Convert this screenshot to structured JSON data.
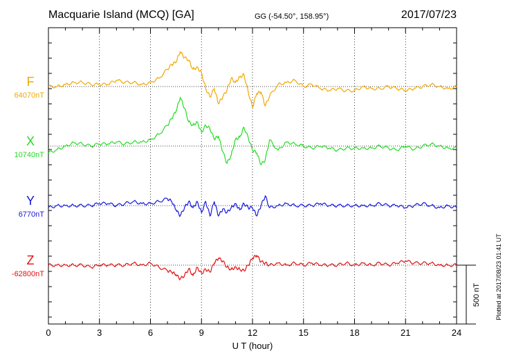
{
  "header": {
    "station": "Macquarie Island (MCQ)  [GA]",
    "coordinates": "GG (-54.50°, 158.95°)",
    "date": "2017/07/23"
  },
  "footer": {
    "plotted": "Plotted at 2017/08/23 01:41  UT"
  },
  "scale_bar": {
    "label": "500 nT",
    "value_nT": 500
  },
  "chart_data": {
    "type": "line",
    "xlabel": "U T (hour)",
    "xlim": [
      0,
      24
    ],
    "x_ticks": [
      0,
      3,
      6,
      9,
      12,
      15,
      18,
      21,
      24
    ],
    "x_tick_labels": [
      "0",
      "3",
      "6",
      "9",
      "12",
      "15",
      "18",
      "21",
      "24"
    ],
    "grid": {
      "vertical_dotted": true,
      "baseline_dotted": true
    },
    "x": [
      0,
      0.5,
      1,
      1.5,
      2,
      2.5,
      3,
      3.5,
      4,
      4.5,
      5,
      5.5,
      6,
      6.5,
      7,
      7.25,
      7.5,
      7.75,
      8,
      8.25,
      8.5,
      8.75,
      9,
      9.25,
      9.5,
      9.75,
      10,
      10.25,
      10.5,
      10.75,
      11,
      11.25,
      11.5,
      11.75,
      12,
      12.25,
      12.5,
      12.75,
      13,
      13.5,
      14,
      14.5,
      15,
      15.5,
      16,
      16.5,
      17,
      17.5,
      18,
      18.5,
      19,
      19.5,
      20,
      20.5,
      21,
      21.5,
      22,
      22.5,
      23,
      23.5,
      24
    ],
    "series": [
      {
        "name": "F",
        "color": "#f0a800",
        "baseline_label": "64070nT",
        "baseline_nT": 64070,
        "values": [
          0,
          0,
          3,
          6,
          6,
          3,
          3,
          3,
          9,
          6,
          6,
          3,
          6,
          12,
          25,
          32,
          35,
          50,
          42,
          38,
          25,
          28,
          20,
          -3,
          -15,
          -3,
          -25,
          -15,
          -5,
          12,
          6,
          14,
          17,
          -8,
          -30,
          -10,
          -8,
          -28,
          -14,
          3,
          6,
          9,
          0,
          3,
          -3,
          -6,
          -3,
          -6,
          -6,
          0,
          -3,
          -3,
          0,
          -3,
          -6,
          -3,
          0,
          3,
          0,
          -3,
          0
        ]
      },
      {
        "name": "X",
        "color": "#22dd22",
        "baseline_label": "10740nT",
        "baseline_nT": 10740,
        "values": [
          -10,
          -5,
          0,
          5,
          3,
          0,
          3,
          3,
          6,
          3,
          6,
          6,
          9,
          17,
          30,
          40,
          50,
          70,
          55,
          35,
          30,
          35,
          20,
          30,
          25,
          10,
          14,
          -8,
          -25,
          -13,
          10,
          13,
          27,
          12,
          -6,
          -10,
          -27,
          -20,
          9,
          -6,
          6,
          3,
          0,
          -3,
          0,
          -3,
          -6,
          -3,
          -3,
          -3,
          -3,
          0,
          -3,
          -6,
          0,
          -5,
          0,
          3,
          0,
          -3,
          -3
        ]
      },
      {
        "name": "Y",
        "color": "#1515dd",
        "baseline_label": "6770nT",
        "baseline_nT": 6770,
        "values": [
          -3,
          0,
          0,
          0,
          0,
          0,
          3,
          3,
          0,
          3,
          6,
          3,
          3,
          6,
          10,
          6,
          -6,
          -15,
          -3,
          6,
          -3,
          6,
          -10,
          6,
          -15,
          6,
          -15,
          -5,
          -10,
          -3,
          3,
          -6,
          3,
          -3,
          -3,
          -15,
          0,
          14,
          -3,
          0,
          3,
          0,
          0,
          0,
          3,
          0,
          0,
          0,
          0,
          0,
          0,
          3,
          0,
          0,
          -3,
          0,
          3,
          0,
          -3,
          0,
          -3
        ]
      },
      {
        "name": "Z",
        "color": "#e01010",
        "baseline_label": "-62800nT",
        "baseline_nT": -62800,
        "values": [
          0,
          0,
          0,
          0,
          0,
          -3,
          0,
          0,
          0,
          0,
          3,
          0,
          3,
          -3,
          -8,
          -10,
          -14,
          -20,
          -15,
          -5,
          -15,
          -3,
          -12,
          -6,
          -10,
          3,
          10,
          6,
          -3,
          -6,
          -3,
          -6,
          -8,
          0,
          10,
          14,
          5,
          3,
          0,
          3,
          0,
          3,
          0,
          3,
          0,
          0,
          0,
          3,
          0,
          3,
          0,
          3,
          0,
          3,
          6,
          3,
          3,
          3,
          0,
          0,
          0
        ]
      }
    ]
  }
}
